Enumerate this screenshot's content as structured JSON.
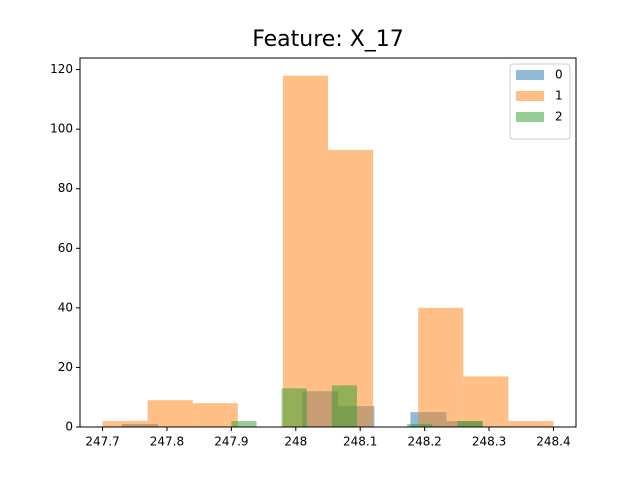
{
  "chart_data": {
    "type": "histogram",
    "title": "Feature: X_17",
    "series": [
      {
        "name": "0",
        "color": "#1f77b4",
        "bins": [
          247.73,
          247.786,
          247.842,
          247.898,
          247.954,
          248.01,
          248.066,
          248.122,
          248.178,
          248.234,
          248.29
        ],
        "values": [
          1,
          0,
          0,
          0,
          0,
          12,
          7,
          0,
          5,
          2
        ]
      },
      {
        "name": "1",
        "color": "#ff7f0e",
        "bins": [
          247.7,
          247.77,
          247.84,
          247.91,
          247.98,
          248.05,
          248.12,
          248.19,
          248.26,
          248.33,
          248.4
        ],
        "values": [
          2,
          9,
          8,
          0,
          118,
          93,
          0,
          40,
          17,
          2
        ]
      },
      {
        "name": "2",
        "color": "#2ca02c",
        "bins": [
          247.9,
          247.939,
          247.978,
          248.017,
          248.056,
          248.095,
          248.134,
          248.173,
          248.212,
          248.251,
          248.29
        ],
        "values": [
          2,
          0,
          13,
          0,
          14,
          0,
          0,
          1,
          0,
          2
        ]
      }
    ],
    "alpha": 0.5,
    "xlim": [
      247.665,
      248.435
    ],
    "xticks": [
      247.7,
      247.8,
      247.9,
      248.0,
      248.1,
      248.2,
      248.3,
      248.4
    ],
    "ylim": [
      0,
      123.9
    ],
    "yticks": [
      0,
      20,
      40,
      60,
      80,
      100,
      120
    ],
    "legend": "upper right"
  }
}
